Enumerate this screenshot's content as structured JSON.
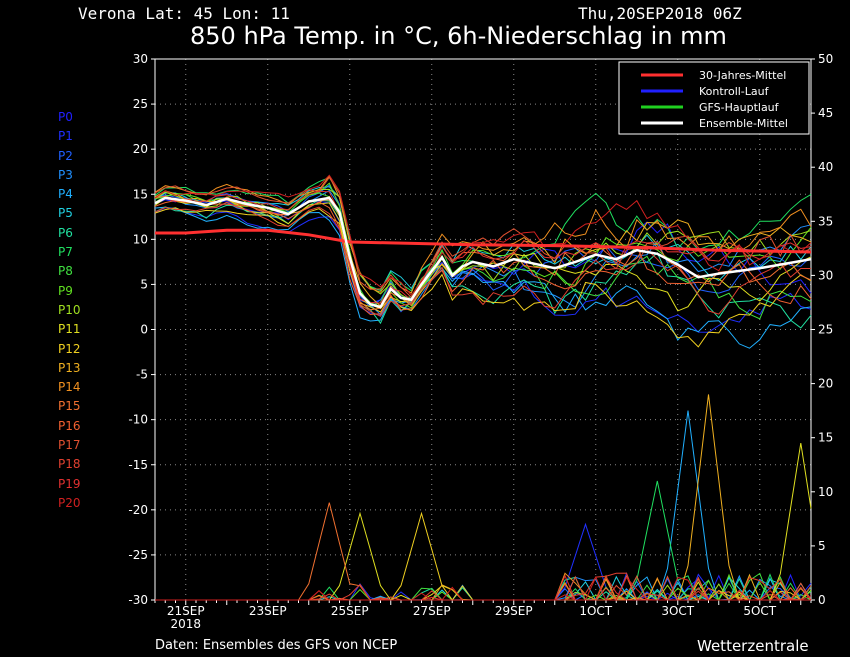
{
  "header": {
    "location": "Verona   Lat: 45 Lon: 11",
    "datetime": "Thu,20SEP2018 06Z",
    "title": "850 hPa Temp. in °C, 6h-Niederschlag in mm"
  },
  "footer": {
    "credit": "Daten: Ensembles des GFS von NCEP",
    "brand": "Wetterzentrale"
  },
  "members": [
    {
      "label": "P0",
      "color": "#2020ff"
    },
    {
      "label": "P1",
      "color": "#2030ff"
    },
    {
      "label": "P2",
      "color": "#2060ff"
    },
    {
      "label": "P3",
      "color": "#2090ff"
    },
    {
      "label": "P4",
      "color": "#20b0ff"
    },
    {
      "label": "P5",
      "color": "#20d0e0"
    },
    {
      "label": "P6",
      "color": "#20e0a0"
    },
    {
      "label": "P7",
      "color": "#20e060"
    },
    {
      "label": "P8",
      "color": "#40e040"
    },
    {
      "label": "P9",
      "color": "#60e020"
    },
    {
      "label": "P10",
      "color": "#a0e020"
    },
    {
      "label": "P11",
      "color": "#e0e020"
    },
    {
      "label": "P12",
      "color": "#f0d020"
    },
    {
      "label": "P13",
      "color": "#f0b020"
    },
    {
      "label": "P14",
      "color": "#f09020"
    },
    {
      "label": "P15",
      "color": "#f07030"
    },
    {
      "label": "P16",
      "color": "#f06030"
    },
    {
      "label": "P17",
      "color": "#e05030"
    },
    {
      "label": "P18",
      "color": "#e04030"
    },
    {
      "label": "P19",
      "color": "#e03030"
    },
    {
      "label": "P20",
      "color": "#d02020"
    }
  ],
  "chart_data": {
    "type": "line",
    "title": "850 hPa Temp. in °C, 6h-Niederschlag in mm",
    "x_ticks": [
      {
        "day": 1,
        "label": "21SEP",
        "sub": "2018"
      },
      {
        "day": 3,
        "label": "23SEP",
        "sub": ""
      },
      {
        "day": 5,
        "label": "25SEP",
        "sub": ""
      },
      {
        "day": 7,
        "label": "27SEP",
        "sub": ""
      },
      {
        "day": 9,
        "label": "29SEP",
        "sub": ""
      },
      {
        "day": 11,
        "label": "1OCT",
        "sub": ""
      },
      {
        "day": 13,
        "label": "3OCT",
        "sub": ""
      },
      {
        "day": 15,
        "label": "5OCT",
        "sub": ""
      }
    ],
    "x_range_days": [
      0.25,
      16.25
    ],
    "y_left": {
      "min": -30,
      "max": 30,
      "step": 5,
      "unit": "°C"
    },
    "y_right": {
      "min": 0,
      "max": 50,
      "step": 5,
      "unit": "mm"
    },
    "grid": true,
    "legend_position": "top-right",
    "legend": [
      {
        "name": "30-Jahres-Mittel",
        "color": "#ff3030"
      },
      {
        "name": "Kontroll-Lauf",
        "color": "#2020ff"
      },
      {
        "name": "GFS-Hauptlauf",
        "color": "#20d020"
      },
      {
        "name": "Ensemble-Mittel",
        "color": "#ffffff"
      }
    ],
    "step_hours": 6,
    "series": {
      "climate_mean": [
        [
          0.25,
          10.7
        ],
        [
          1,
          10.7
        ],
        [
          2,
          11.0
        ],
        [
          3,
          11.0
        ],
        [
          4,
          10.5
        ],
        [
          5,
          9.7
        ],
        [
          6,
          9.6
        ],
        [
          8,
          9.4
        ],
        [
          10,
          9.3
        ],
        [
          12,
          9.1
        ],
        [
          14,
          8.8
        ],
        [
          16.25,
          8.6
        ]
      ],
      "ensemble_mean": [
        [
          0.25,
          14.0
        ],
        [
          0.5,
          14.6
        ],
        [
          1,
          14.3
        ],
        [
          1.5,
          13.8
        ],
        [
          2,
          14.5
        ],
        [
          2.5,
          13.9
        ],
        [
          3,
          13.5
        ],
        [
          3.5,
          12.8
        ],
        [
          4,
          14.2
        ],
        [
          4.5,
          14.6
        ],
        [
          4.75,
          13.0
        ],
        [
          5,
          8.0
        ],
        [
          5.25,
          4.0
        ],
        [
          5.5,
          2.8
        ],
        [
          5.75,
          2.5
        ],
        [
          6,
          4.5
        ],
        [
          6.25,
          3.5
        ],
        [
          6.5,
          3.3
        ],
        [
          6.75,
          5.0
        ],
        [
          7,
          6.5
        ],
        [
          7.25,
          8.0
        ],
        [
          7.5,
          6.0
        ],
        [
          7.75,
          7.0
        ],
        [
          8,
          7.5
        ],
        [
          8.5,
          7.0
        ],
        [
          9,
          7.8
        ],
        [
          9.5,
          7.3
        ],
        [
          10,
          6.8
        ],
        [
          10.5,
          7.5
        ],
        [
          11,
          8.3
        ],
        [
          11.5,
          7.8
        ],
        [
          12,
          8.8
        ],
        [
          12.5,
          8.4
        ],
        [
          13,
          7.2
        ],
        [
          13.5,
          5.8
        ],
        [
          14,
          6.2
        ],
        [
          14.5,
          6.5
        ],
        [
          15,
          6.8
        ],
        [
          15.5,
          7.2
        ],
        [
          16,
          7.6
        ],
        [
          16.25,
          7.8
        ]
      ],
      "precip_spikes": [
        {
          "member": 15,
          "peak_day": 4.5,
          "peak_mm": 9
        },
        {
          "member": 11,
          "peak_day": 5.25,
          "peak_mm": 8
        },
        {
          "member": 12,
          "peak_day": 6.75,
          "peak_mm": 8
        },
        {
          "member": 4,
          "peak_day": 13.25,
          "peak_mm": 17.5
        },
        {
          "member": 13,
          "peak_day": 13.75,
          "peak_mm": 19
        },
        {
          "member": 7,
          "peak_day": 12.5,
          "peak_mm": 11
        },
        {
          "member": 1,
          "peak_day": 10.75,
          "peak_mm": 7
        },
        {
          "member": 11,
          "peak_day": 16.0,
          "peak_mm": 14.5
        }
      ]
    }
  }
}
